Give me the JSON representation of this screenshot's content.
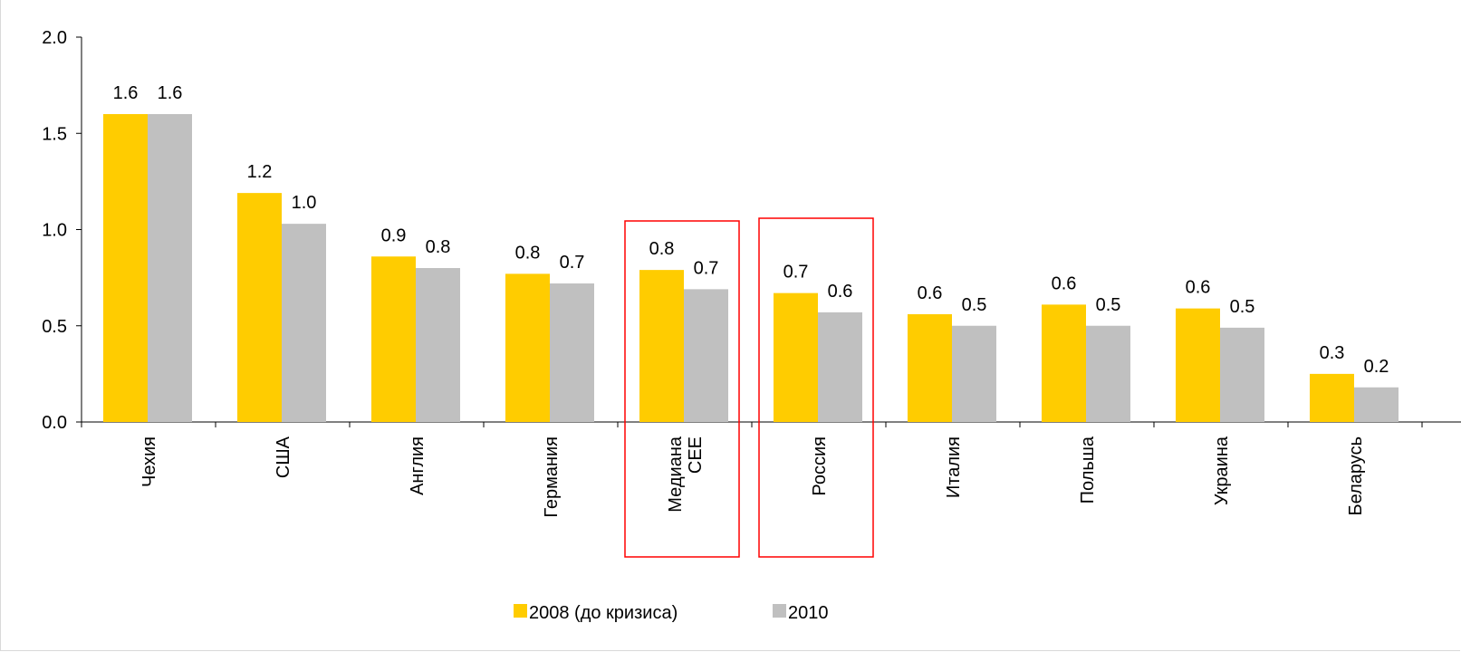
{
  "chart_data": {
    "type": "bar",
    "title": "",
    "xlabel": "",
    "ylabel": "",
    "ylim": [
      0,
      2.0
    ],
    "yticks": [
      "0.0",
      "0.5",
      "1.0",
      "1.5",
      "2.0"
    ],
    "grid": false,
    "legend_position": "bottom",
    "categories": [
      [
        "Чехия"
      ],
      [
        "США"
      ],
      [
        "Англия"
      ],
      [
        "Германия"
      ],
      [
        "Медиана",
        "CEE"
      ],
      [
        "Россия"
      ],
      [
        "Италия"
      ],
      [
        "Польша"
      ],
      [
        "Украина"
      ],
      [
        "Беларусь"
      ]
    ],
    "series": [
      {
        "name": "2008 (до кризиса)",
        "color": "#FFCC00",
        "values": [
          1.6,
          1.19,
          0.86,
          0.77,
          0.79,
          0.67,
          0.56,
          0.61,
          0.59,
          0.25
        ],
        "labels": [
          "1.6",
          "1.2",
          "0.9",
          "0.8",
          "0.8",
          "0.7",
          "0.6",
          "0.6",
          "0.6",
          "0.3"
        ]
      },
      {
        "name": "2010",
        "color": "#C0C0C0",
        "values": [
          1.6,
          1.03,
          0.8,
          0.72,
          0.69,
          0.57,
          0.5,
          0.5,
          0.49,
          0.18
        ],
        "labels": [
          "1.6",
          "1.0",
          "0.8",
          "0.7",
          "0.7",
          "0.6",
          "0.5",
          "0.5",
          "0.5",
          "0.2"
        ]
      }
    ],
    "highlighted_categories": [
      4,
      5
    ],
    "highlight_color": "#FF0000"
  }
}
